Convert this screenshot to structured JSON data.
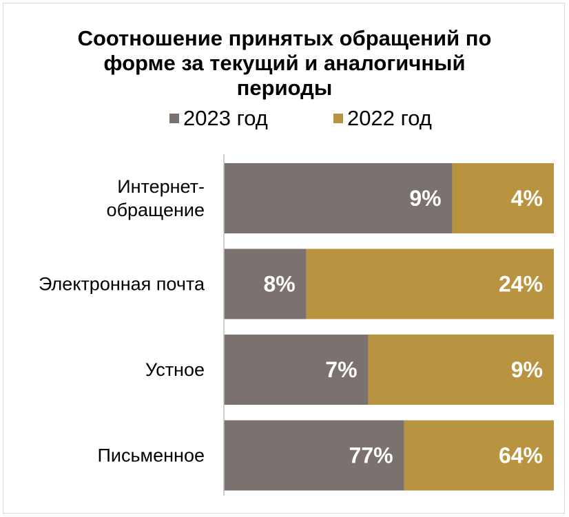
{
  "chart_data": {
    "type": "bar",
    "orientation": "horizontal",
    "stacked": "100%",
    "title": "Соотношение принятых обращений по форме за текущий и аналогичный периоды",
    "title_lines": [
      "Соотношение принятых обращений по",
      "форме за текущий и аналогичный",
      "периоды"
    ],
    "legend_position": "top",
    "grid": false,
    "categories": [
      [
        "Интернет-",
        "обращение"
      ],
      [
        "Электронная почта"
      ],
      [
        "Устное"
      ],
      [
        "Письменное"
      ]
    ],
    "series": [
      {
        "name": "2023 год",
        "color": "#7b716e",
        "values": [
          9,
          8,
          7,
          77
        ],
        "labels": [
          "9%",
          "8%",
          "7%",
          "77%"
        ]
      },
      {
        "name": "2022 год",
        "color": "#b99440",
        "values": [
          4,
          24,
          9,
          64
        ],
        "labels": [
          "4%",
          "24%",
          "9%",
          "64%"
        ]
      }
    ]
  }
}
